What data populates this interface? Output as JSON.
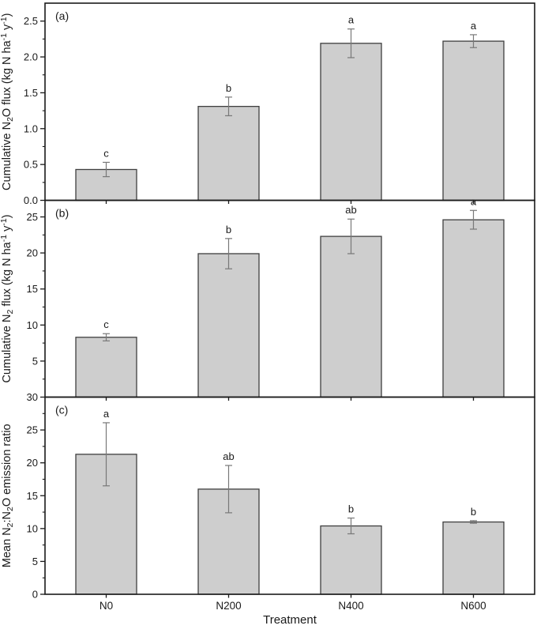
{
  "figure": {
    "colors": {
      "background": "#ffffff",
      "frame": "#1a1a1a",
      "bar_fill": "#cecece",
      "bar_stroke": "#3f3f3f",
      "error_bar": "#787878",
      "text": "#1a1a1a"
    }
  },
  "chart_data": {
    "type": "bar",
    "categories": [
      "N0",
      "N200",
      "N400",
      "N600"
    ],
    "xlabel": "Treatment",
    "legend": "none",
    "grid": false,
    "panels": [
      {
        "panel_label": "(a)",
        "ylabel_plain": "Cumulative N2O flux (kg N ha-1 y-1)",
        "ylabel_segments": [
          {
            "t": "Cumulative N"
          },
          {
            "t": "2",
            "s": "sub"
          },
          {
            "t": "O flux (kg N ha"
          },
          {
            "t": "-1",
            "s": "sup"
          },
          {
            "t": " y"
          },
          {
            "t": "-1",
            "s": "sup"
          },
          {
            "t": ")"
          }
        ],
        "ylim": [
          0,
          2.75
        ],
        "major_ticks": [
          {
            "v": 0.0,
            "label": "0.0"
          },
          {
            "v": 0.5,
            "label": "0.5"
          },
          {
            "v": 1.0,
            "label": "1.0"
          },
          {
            "v": 1.5,
            "label": "1.5"
          },
          {
            "v": 2.0,
            "label": "2.0"
          },
          {
            "v": 2.5,
            "label": "2.5"
          }
        ],
        "minor_step": 0.25,
        "values": [
          0.43,
          1.31,
          2.19,
          2.22
        ],
        "errors": [
          0.1,
          0.13,
          0.2,
          0.09
        ],
        "sig_letters": [
          "c",
          "b",
          "a",
          "a"
        ]
      },
      {
        "panel_label": "(b)",
        "ylabel_plain": "Cumulative N2 flux (kg N ha-1 y-1)",
        "ylabel_segments": [
          {
            "t": "Cumulative N"
          },
          {
            "t": "2",
            "s": "sub"
          },
          {
            "t": " flux (kg N ha"
          },
          {
            "t": "-1",
            "s": "sup"
          },
          {
            "t": " y"
          },
          {
            "t": "-1",
            "s": "sup"
          },
          {
            "t": ")"
          }
        ],
        "ylim": [
          0,
          27.3
        ],
        "major_ticks": [
          {
            "v": 5,
            "label": "5"
          },
          {
            "v": 10,
            "label": "10"
          },
          {
            "v": 15,
            "label": "15"
          },
          {
            "v": 20,
            "label": "20"
          },
          {
            "v": 25,
            "label": "25"
          }
        ],
        "minor_step": 2.5,
        "values": [
          8.3,
          19.9,
          22.3,
          24.6
        ],
        "errors": [
          0.5,
          2.1,
          2.4,
          1.3
        ],
        "sig_letters": [
          "c",
          "b",
          "ab",
          "a"
        ]
      },
      {
        "panel_label": "(c)",
        "ylabel_plain": "Mean N2:N2O emission ratio",
        "ylabel_segments": [
          {
            "t": "Mean N"
          },
          {
            "t": "2",
            "s": "sub"
          },
          {
            "t": ":N"
          },
          {
            "t": "2",
            "s": "sub"
          },
          {
            "t": "O emission ratio"
          }
        ],
        "ylim": [
          0,
          30
        ],
        "major_ticks": [
          {
            "v": 0,
            "label": "0"
          },
          {
            "v": 5,
            "label": "5"
          },
          {
            "v": 10,
            "label": "10"
          },
          {
            "v": 15,
            "label": "15"
          },
          {
            "v": 20,
            "label": "20"
          },
          {
            "v": 25,
            "label": "25"
          },
          {
            "v": 30,
            "label": "30"
          }
        ],
        "minor_step": 2.5,
        "values": [
          21.3,
          16.0,
          10.4,
          11.0
        ],
        "errors": [
          4.8,
          3.6,
          1.2,
          0.2
        ],
        "sig_letters": [
          "a",
          "ab",
          "b",
          "b"
        ]
      }
    ]
  }
}
